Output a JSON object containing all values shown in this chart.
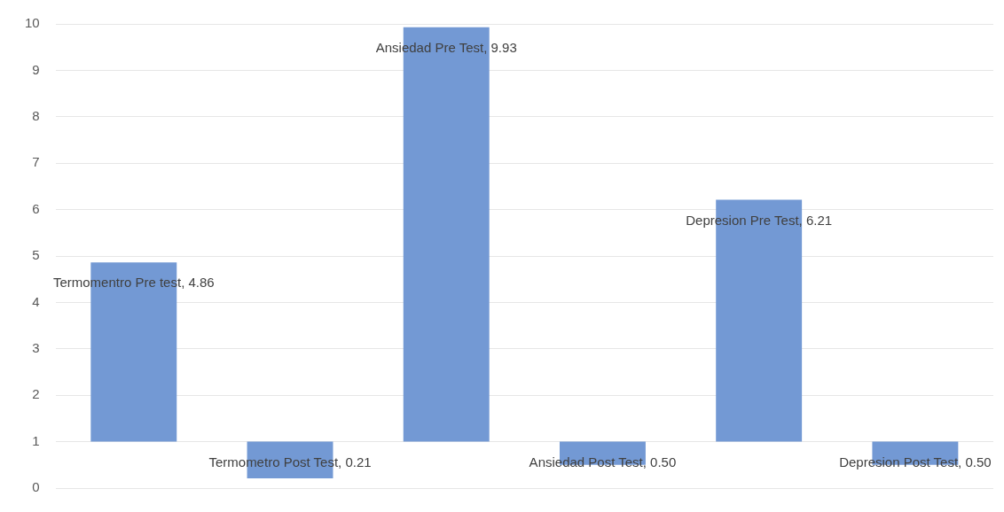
{
  "chart_data": {
    "type": "bar",
    "categories": [
      null,
      null,
      null,
      null,
      null,
      null
    ],
    "base": [
      1,
      1,
      1,
      1,
      1,
      1
    ],
    "values": [
      3.86,
      -0.79,
      8.93,
      -0.5,
      5.21,
      -0.5
    ],
    "value_labels": [
      "Termomentro Pre test, 4.86",
      "Termometro Post Test, 0.21",
      "Ansiedad Pre Test, 9.93",
      "Ansiedad Post Test, 0.50",
      "Depresion Pre Test, 6.21",
      "Depresion Post Test, 0.50"
    ],
    "color": "#7399d4",
    "ylim": [
      0,
      10
    ],
    "yticks": [
      0,
      1,
      2,
      3,
      4,
      5,
      6,
      7,
      8,
      9,
      10
    ],
    "grid": "y",
    "tick_labels": "y",
    "legend": false
  }
}
